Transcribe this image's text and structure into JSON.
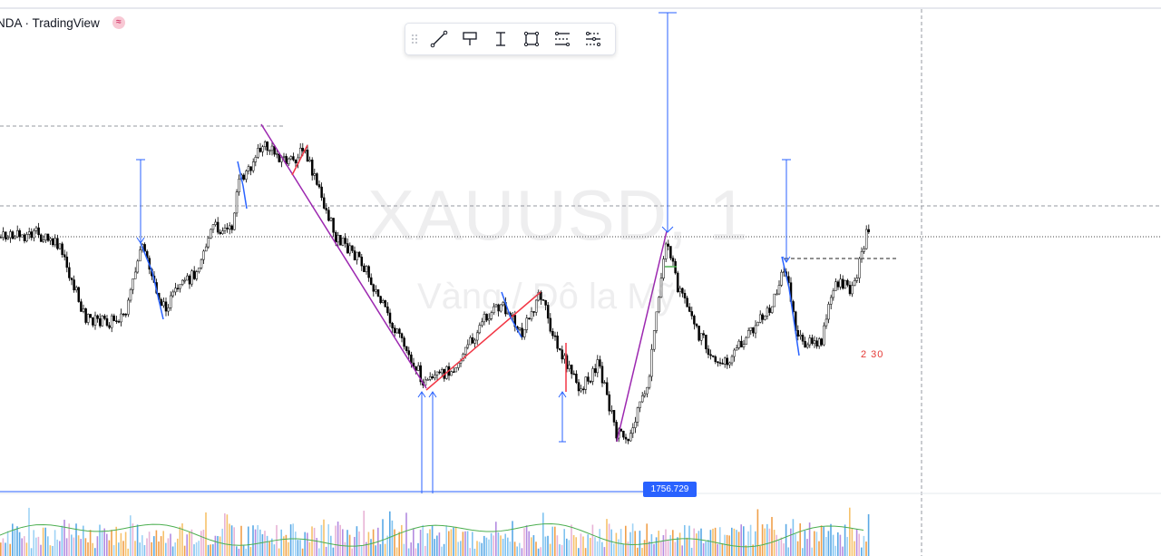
{
  "header": {
    "title": "NDA · TradingView",
    "icon": "approx-icon",
    "icon_glyph": "≈"
  },
  "watermark": {
    "symbol": "XAUUSD, 1",
    "description": "Vàng / Đô la Mỹ"
  },
  "toolbar": {
    "items": [
      {
        "name": "trend-line-icon",
        "label": "Trend line"
      },
      {
        "name": "price-label-icon",
        "label": "Price label"
      },
      {
        "name": "price-range-icon",
        "label": "Price range"
      },
      {
        "name": "rectangle-icon",
        "label": "Rectangle"
      },
      {
        "name": "fib-levels-icon",
        "label": "Fib levels"
      },
      {
        "name": "fib-settings-icon",
        "label": "Fib settings"
      }
    ]
  },
  "annotations": {
    "price_tag": "1756.729",
    "red_label": "2 30"
  },
  "colors": {
    "up": "#ffffff",
    "down": "#000000",
    "wick": "#000000",
    "trend_purple": "#9c27b0",
    "trend_red": "#f23645",
    "measure_blue": "#2962ff",
    "volume_green": "#4caf50"
  }
}
